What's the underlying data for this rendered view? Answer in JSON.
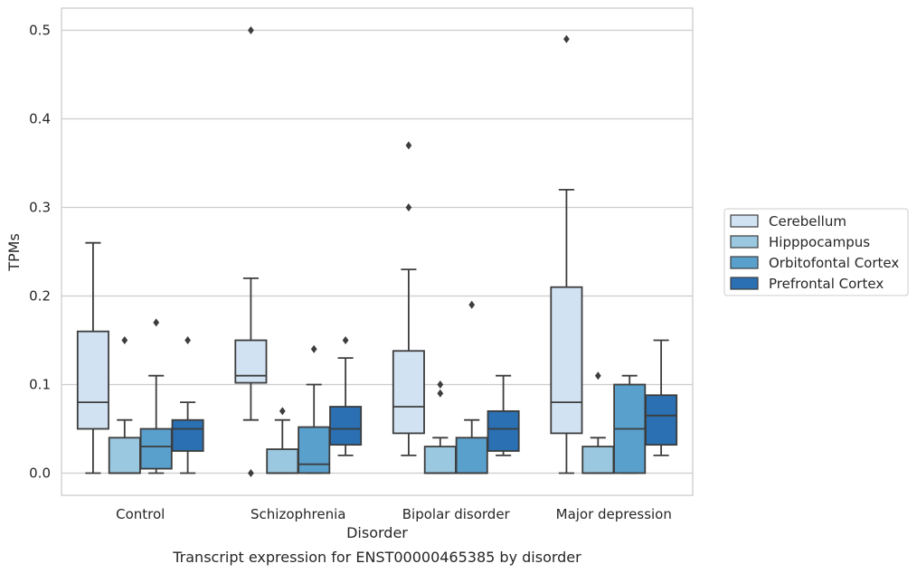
{
  "caption": "Transcript expression for ENST00000465385 by disorder",
  "chart_data": {
    "type": "box",
    "xlabel": "Disorder",
    "ylabel": "TPMs",
    "ylim": [
      -0.025,
      0.525
    ],
    "yticks": [
      0.0,
      0.1,
      0.2,
      0.3,
      0.4,
      0.5
    ],
    "ytick_labels": [
      "0.0",
      "0.1",
      "0.2",
      "0.3",
      "0.4",
      "0.5"
    ],
    "grid": "horizontal",
    "legend_placement": "right",
    "categories": [
      "Control",
      "Schizophrenia",
      "Bipolar disorder",
      "Major depression"
    ],
    "series": [
      {
        "name": "Cerebellum",
        "color": "#d1e3f3",
        "boxes": [
          {
            "whislo": 0.0,
            "q1": 0.05,
            "med": 0.08,
            "q3": 0.16,
            "whishi": 0.26,
            "fliers": []
          },
          {
            "whislo": 0.06,
            "q1": 0.102,
            "med": 0.11,
            "q3": 0.15,
            "whishi": 0.22,
            "fliers": [
              0.0,
              0.5
            ]
          },
          {
            "whislo": 0.02,
            "q1": 0.045,
            "med": 0.075,
            "q3": 0.138,
            "whishi": 0.23,
            "fliers": [
              0.3,
              0.37
            ]
          },
          {
            "whislo": 0.0,
            "q1": 0.045,
            "med": 0.08,
            "q3": 0.21,
            "whishi": 0.32,
            "fliers": [
              0.49
            ]
          }
        ]
      },
      {
        "name": "Hipppocampus",
        "color": "#9ac8e0",
        "boxes": [
          {
            "whislo": 0.0,
            "q1": 0.0,
            "med": 0.0,
            "q3": 0.04,
            "whishi": 0.06,
            "fliers": [
              0.15
            ]
          },
          {
            "whislo": 0.0,
            "q1": 0.0,
            "med": 0.0,
            "q3": 0.027,
            "whishi": 0.06,
            "fliers": [
              0.07
            ]
          },
          {
            "whislo": 0.0,
            "q1": 0.0,
            "med": 0.0,
            "q3": 0.03,
            "whishi": 0.04,
            "fliers": [
              0.09,
              0.1
            ]
          },
          {
            "whislo": 0.0,
            "q1": 0.0,
            "med": 0.0,
            "q3": 0.03,
            "whishi": 0.04,
            "fliers": [
              0.11
            ]
          }
        ]
      },
      {
        "name": "Orbitofontal Cortex",
        "color": "#5aa0cd",
        "boxes": [
          {
            "whislo": 0.0,
            "q1": 0.005,
            "med": 0.03,
            "q3": 0.05,
            "whishi": 0.11,
            "fliers": [
              0.17
            ]
          },
          {
            "whislo": 0.0,
            "q1": 0.0,
            "med": 0.01,
            "q3": 0.052,
            "whishi": 0.1,
            "fliers": [
              0.14
            ]
          },
          {
            "whislo": 0.0,
            "q1": 0.0,
            "med": 0.0,
            "q3": 0.04,
            "whishi": 0.06,
            "fliers": [
              0.19
            ]
          },
          {
            "whislo": 0.0,
            "q1": 0.0,
            "med": 0.05,
            "q3": 0.1,
            "whishi": 0.11,
            "fliers": []
          }
        ]
      },
      {
        "name": "Prefrontal Cortex",
        "color": "#2a70b2",
        "boxes": [
          {
            "whislo": 0.0,
            "q1": 0.025,
            "med": 0.05,
            "q3": 0.06,
            "whishi": 0.08,
            "fliers": [
              0.15
            ]
          },
          {
            "whislo": 0.02,
            "q1": 0.032,
            "med": 0.05,
            "q3": 0.075,
            "whishi": 0.13,
            "fliers": [
              0.15
            ]
          },
          {
            "whislo": 0.02,
            "q1": 0.025,
            "med": 0.05,
            "q3": 0.07,
            "whishi": 0.11,
            "fliers": []
          },
          {
            "whislo": 0.02,
            "q1": 0.032,
            "med": 0.065,
            "q3": 0.088,
            "whishi": 0.15,
            "fliers": []
          }
        ]
      }
    ]
  }
}
